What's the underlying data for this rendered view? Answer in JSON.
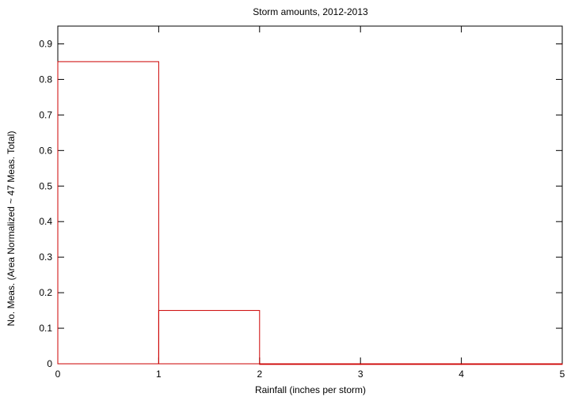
{
  "chart_data": {
    "type": "bar",
    "style": "histogram-steps",
    "title": "Storm amounts, 2012-2013",
    "xlabel": "Rainfall (inches per storm)",
    "ylabel": "No. Meas. (Area Normalized ~ 47 Meas. Total)",
    "xlim": [
      0,
      5
    ],
    "ylim": [
      0,
      0.95
    ],
    "x_ticks": [
      "0",
      "1",
      "2",
      "3",
      "4",
      "5"
    ],
    "y_ticks": [
      "0",
      "0.1",
      "0.2",
      "0.3",
      "0.4",
      "0.5",
      "0.6",
      "0.7",
      "0.8",
      "0.9"
    ],
    "bins": [
      {
        "x0": 0,
        "x1": 1,
        "value": 0.85
      },
      {
        "x0": 1,
        "x1": 2,
        "value": 0.15
      },
      {
        "x0": 2,
        "x1": 3,
        "value": 0
      },
      {
        "x0": 3,
        "x1": 4,
        "value": 0
      },
      {
        "x0": 4,
        "x1": 5,
        "value": 0
      }
    ],
    "grid": false,
    "legend": "none",
    "bar_color": "#cc0000"
  }
}
